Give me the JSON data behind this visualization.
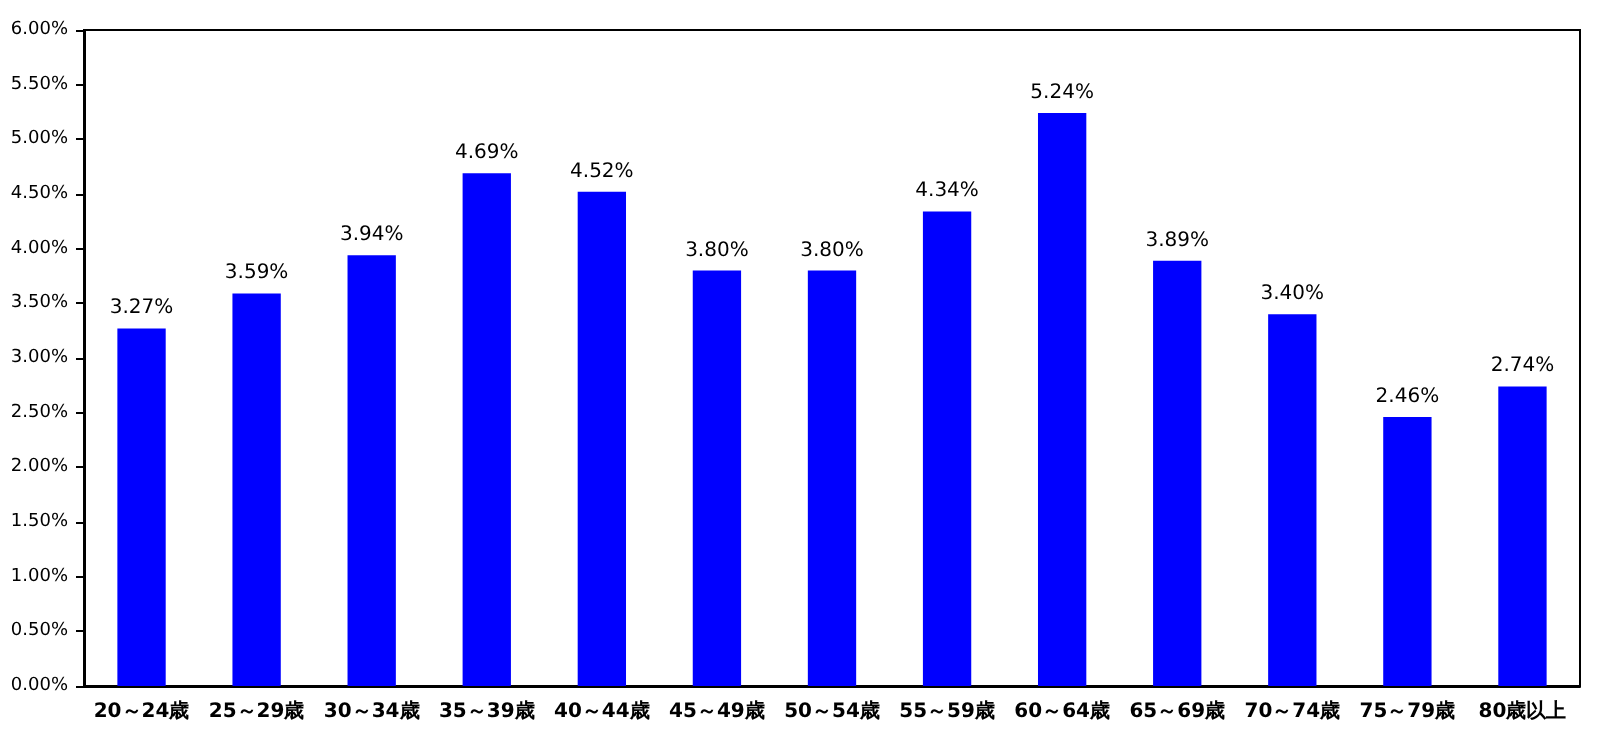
{
  "chart_data": {
    "type": "bar",
    "categories": [
      "20～24歳",
      "25～29歳",
      "30～34歳",
      "35～39歳",
      "40～44歳",
      "45～49歳",
      "50～54歳",
      "55～59歳",
      "60～64歳",
      "65～69歳",
      "70～74歳",
      "75～79歳",
      "80歳以上"
    ],
    "values": [
      3.27,
      3.59,
      3.94,
      4.69,
      4.52,
      3.8,
      3.8,
      4.34,
      5.24,
      3.89,
      3.4,
      2.46,
      2.74
    ],
    "value_labels": [
      "3.27%",
      "3.59%",
      "3.94%",
      "4.69%",
      "4.52%",
      "3.80%",
      "3.80%",
      "4.34%",
      "5.24%",
      "3.89%",
      "3.40%",
      "2.46%",
      "2.74%"
    ],
    "color": "#0000ff",
    "ylim": [
      0,
      6
    ],
    "yticks": [
      {
        "value": 0,
        "label": "0.00%"
      },
      {
        "value": 0.5,
        "label": "0.50%"
      },
      {
        "value": 1,
        "label": "1.00%"
      },
      {
        "value": 1.5,
        "label": "1.50%"
      },
      {
        "value": 2,
        "label": "2.00%"
      },
      {
        "value": 2.5,
        "label": "2.50%"
      },
      {
        "value": 3,
        "label": "3.00%"
      },
      {
        "value": 3.5,
        "label": "3.50%"
      },
      {
        "value": 4,
        "label": "4.00%"
      },
      {
        "value": 4.5,
        "label": "4.50%"
      },
      {
        "value": 5,
        "label": "5.00%"
      },
      {
        "value": 5.5,
        "label": "5.50%"
      },
      {
        "value": 6,
        "label": "6.00%"
      }
    ],
    "grid": false
  }
}
